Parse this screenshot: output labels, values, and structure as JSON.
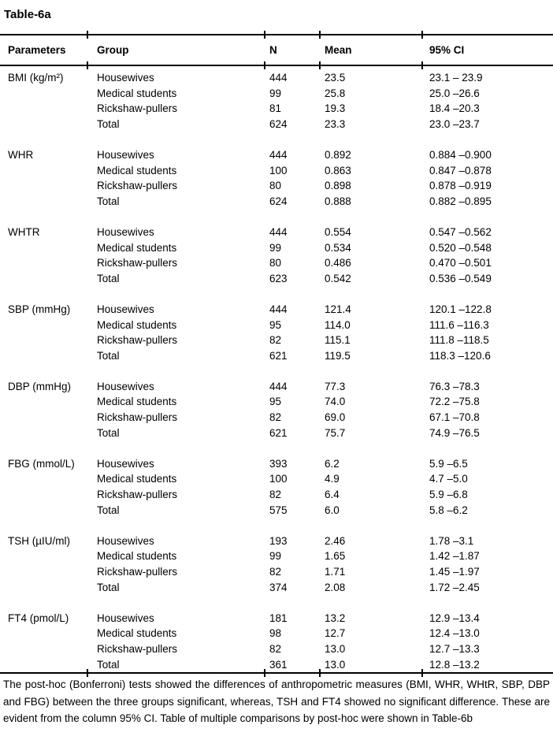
{
  "title": "Table-6a",
  "table": {
    "headers": {
      "parameters": "Parameters",
      "group": "Group",
      "n": "N",
      "mean": "Mean",
      "ci": "95% CI"
    },
    "sections": [
      {
        "parameter": "BMI (kg/m²)",
        "rows": [
          {
            "group": "Housewives",
            "n": "444",
            "mean": "23.5",
            "ci": "23.1 – 23.9"
          },
          {
            "group": "Medical students",
            "n": "99",
            "mean": "25.8",
            "ci": "25.0 –26.6"
          },
          {
            "group": "Rickshaw-pullers",
            "n": "81",
            "mean": "19.3",
            "ci": "18.4 –20.3"
          },
          {
            "group": "Total",
            "n": "624",
            "mean": "23.3",
            "ci": "23.0 –23.7"
          }
        ]
      },
      {
        "parameter": "WHR",
        "rows": [
          {
            "group": "Housewives",
            "n": "444",
            "mean": "0.892",
            "ci": "0.884 –0.900"
          },
          {
            "group": "Medical students",
            "n": "100",
            "mean": "0.863",
            "ci": "0.847 –0.878"
          },
          {
            "group": "Rickshaw-pullers",
            "n": "80",
            "mean": "0.898",
            "ci": "0.878 –0.919"
          },
          {
            "group": "Total",
            "n": "624",
            "mean": "0.888",
            "ci": "0.882 –0.895"
          }
        ]
      },
      {
        "parameter": "WHTR",
        "rows": [
          {
            "group": "Housewives",
            "n": "444",
            "mean": "0.554",
            "ci": "0.547 –0.562"
          },
          {
            "group": "Medical students",
            "n": "99",
            "mean": "0.534",
            "ci": "0.520 –0.548"
          },
          {
            "group": "Rickshaw-pullers",
            "n": "80",
            "mean": "0.486",
            "ci": "0.470 –0.501"
          },
          {
            "group": "Total",
            "n": "623",
            "mean": "0.542",
            "ci": "0.536 –0.549"
          }
        ]
      },
      {
        "parameter": "SBP (mmHg)",
        "rows": [
          {
            "group": "Housewives",
            "n": "444",
            "mean": "121.4",
            "ci": "120.1 –122.8"
          },
          {
            "group": "Medical students",
            "n": "95",
            "mean": "114.0",
            "ci": "111.6 –116.3"
          },
          {
            "group": "Rickshaw-pullers",
            "n": "82",
            "mean": "115.1",
            "ci": "111.8 –118.5"
          },
          {
            "group": "Total",
            "n": "621",
            "mean": "119.5",
            "ci": "118.3 –120.6"
          }
        ]
      },
      {
        "parameter": "DBP (mmHg)",
        "rows": [
          {
            "group": "Housewives",
            "n": "444",
            "mean": "77.3",
            "ci": "76.3 –78.3"
          },
          {
            "group": "Medical students",
            "n": "95",
            "mean": "74.0",
            "ci": "72.2 –75.8"
          },
          {
            "group": "Rickshaw-pullers",
            "n": "82",
            "mean": "69.0",
            "ci": "67.1 –70.8"
          },
          {
            "group": "Total",
            "n": "621",
            "mean": "75.7",
            "ci": "74.9 –76.5"
          }
        ]
      },
      {
        "parameter": "FBG (mmol/L)",
        "rows": [
          {
            "group": "Housewives",
            "n": "393",
            "mean": "6.2",
            "ci": "5.9 –6.5"
          },
          {
            "group": "Medical students",
            "n": "100",
            "mean": "4.9",
            "ci": "4.7 –5.0"
          },
          {
            "group": "Rickshaw-pullers",
            "n": "82",
            "mean": "6.4",
            "ci": "5.9 –6.8"
          },
          {
            "group": "Total",
            "n": "575",
            "mean": "6.0",
            "ci": "5.8 –6.2"
          }
        ]
      },
      {
        "parameter": "TSH (µIU/ml)",
        "rows": [
          {
            "group": "Housewives",
            "n": "193",
            "mean": "2.46",
            "ci": "1.78 –3.1"
          },
          {
            "group": "Medical students",
            "n": "99",
            "mean": "1.65",
            "ci": "1.42 –1.87"
          },
          {
            "group": "Rickshaw-pullers",
            "n": "82",
            "mean": "1.71",
            "ci": "1.45 –1.97"
          },
          {
            "group": "Total",
            "n": "374",
            "mean": "2.08",
            "ci": "1.72 –2.45"
          }
        ]
      },
      {
        "parameter": "FT4 (pmol/L)",
        "rows": [
          {
            "group": "Housewives",
            "n": "181",
            "mean": "13.2",
            "ci": "12.9 –13.4"
          },
          {
            "group": "Medical students",
            "n": "98",
            "mean": "12.7",
            "ci": "12.4 –13.0"
          },
          {
            "group": "Rickshaw-pullers",
            "n": "82",
            "mean": "13.0",
            "ci": "12.7 –13.3"
          },
          {
            "group": "Total",
            "n": "361",
            "mean": "13.0",
            "ci": "12.8 –13.2"
          }
        ]
      }
    ]
  },
  "footnote": "The post-hoc (Bonferroni) tests showed the differences of anthropometric measures (BMI, WHR, WHtR, SBP, DBP and FBG) between the three groups significant, whereas, TSH and FT4 showed no significant difference. These are evident from the column 95% CI. Table of multiple comparisons by post-hoc were shown in Table-6b"
}
